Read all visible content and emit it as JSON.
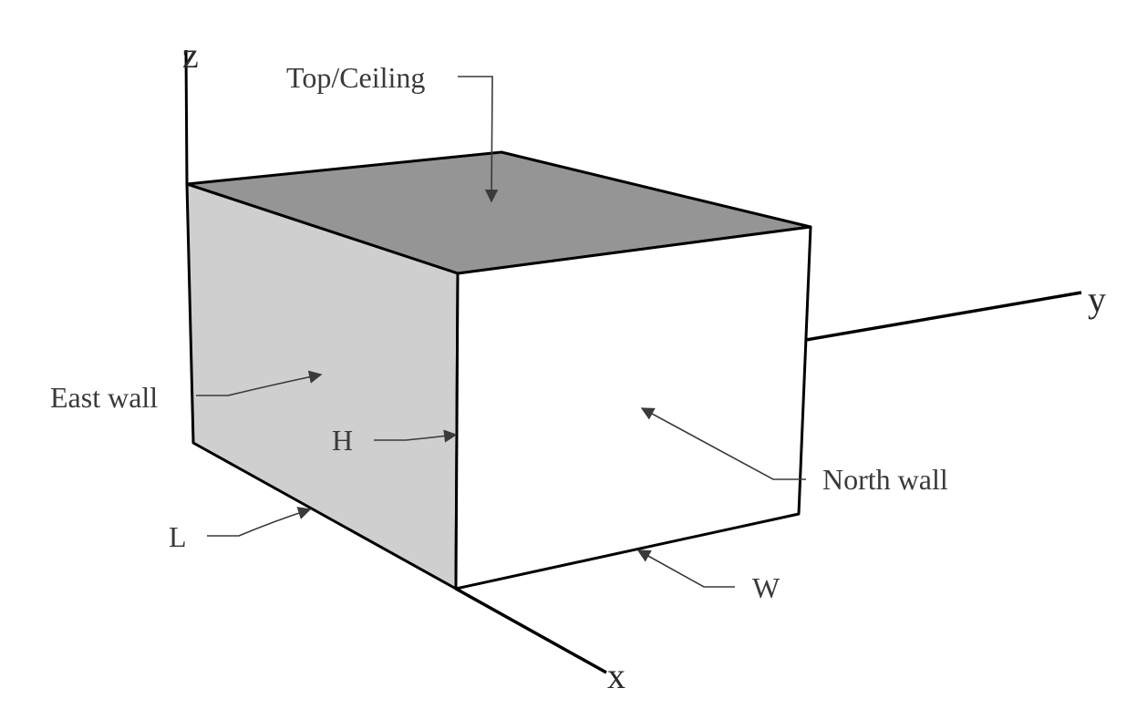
{
  "axes": {
    "x": "x",
    "y": "y",
    "z": "z"
  },
  "labels": {
    "top": "Top/Ceiling",
    "east_wall": "East wall",
    "north_wall": "North wall",
    "height": "H",
    "length": "L",
    "width": "W"
  },
  "colors": {
    "top_face": "#959595",
    "east_face": "#cfcfcf",
    "north_face": "#ffffff",
    "edges": "#000000",
    "axes": "#000000",
    "leaders": "#3a3a3a"
  }
}
